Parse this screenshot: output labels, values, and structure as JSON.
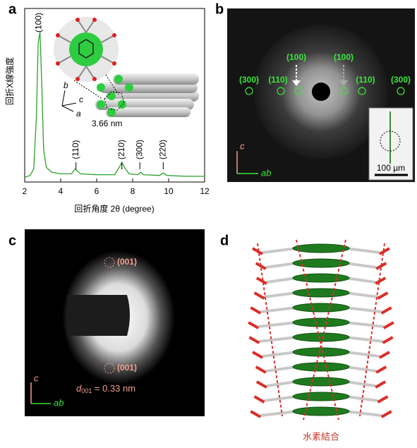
{
  "panels": {
    "a": {
      "letter": "a",
      "chart_data": {
        "type": "line",
        "x_label": "回折角度 2θ (degree)",
        "y_label": "回折X線強度",
        "xlim": [
          2,
          12
        ],
        "xticks": [
          2,
          4,
          6,
          8,
          10,
          12
        ],
        "ylim": [
          0,
          105
        ],
        "color": "#2ca02c",
        "x": [
          2.0,
          2.3,
          2.5,
          2.65,
          2.75,
          2.85,
          2.95,
          3.05,
          3.2,
          3.5,
          4.0,
          4.6,
          4.8,
          4.9,
          5.1,
          6.0,
          7.0,
          7.25,
          7.4,
          7.55,
          7.8,
          8.3,
          8.45,
          8.6,
          9.5,
          9.7,
          9.9,
          11.0,
          12.0
        ],
        "values": [
          3,
          4,
          8,
          40,
          85,
          92,
          60,
          20,
          9,
          6,
          5,
          5,
          8,
          7,
          5,
          4.5,
          4.5,
          9,
          12,
          9,
          5,
          4.5,
          6,
          4.5,
          4,
          5.5,
          4,
          3.5,
          3.5
        ],
        "peaks": [
          {
            "label": "(100)",
            "x": 2.8
          },
          {
            "label": "(110)",
            "x": 4.85
          },
          {
            "label": "(210)",
            "x": 7.4
          },
          {
            "label": "(300)",
            "x": 8.4
          },
          {
            "label": "(220)",
            "x": 9.7
          }
        ]
      },
      "inset": {
        "spacing": "3.66 nm",
        "axis_a": "a",
        "axis_b": "b",
        "axis_c": "c"
      }
    },
    "b": {
      "letter": "b",
      "reflections": [
        "(300)",
        "(110)",
        "(100)",
        "(100)",
        "(110)",
        "(300)"
      ],
      "axis_c": "c",
      "axis_ab": "ab",
      "scale_bar": "100 µm"
    },
    "c": {
      "letter": "c",
      "reflections": [
        "(001)",
        "(001)"
      ],
      "d_symbol": "d",
      "d_subscript": "001",
      "d_value": " = 0.33 nm",
      "axis_c": "c",
      "axis_ab": "ab"
    },
    "d": {
      "letter": "d",
      "caption": "水素結合"
    }
  }
}
